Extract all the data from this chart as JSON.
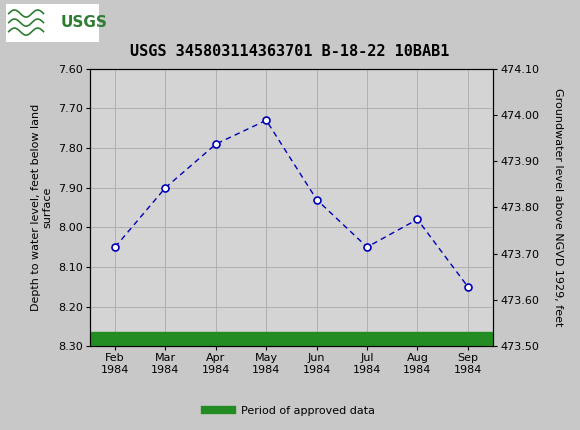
{
  "title": "USGS 345803114363701 B-18-22 10BAB1",
  "x_labels": [
    "Feb\n1984",
    "Mar\n1984",
    "Apr\n1984",
    "May\n1984",
    "Jun\n1984",
    "Jul\n1984",
    "Aug\n1984",
    "Sep\n1984"
  ],
  "x_positions": [
    0,
    1,
    2,
    3,
    4,
    5,
    6,
    7
  ],
  "y_depth": [
    8.05,
    7.9,
    7.79,
    7.73,
    7.93,
    8.05,
    7.98,
    8.15
  ],
  "ylabel_left": "Depth to water level, feet below land\nsurface",
  "ylabel_right": "Groundwater level above NGVD 1929, feet",
  "ylim_left": [
    8.3,
    7.6
  ],
  "ylim_right": [
    473.5,
    474.1
  ],
  "yticks_left": [
    7.6,
    7.7,
    7.8,
    7.9,
    8.0,
    8.1,
    8.2,
    8.3
  ],
  "yticks_right": [
    473.5,
    473.6,
    473.7,
    473.8,
    473.9,
    474.0,
    474.1
  ],
  "line_color": "#0000BB",
  "marker_color": "#0000BB",
  "green_bar_color": "#228B22",
  "plot_bg_color": "#D4D4D4",
  "fig_bg_color": "#C8C8C8",
  "header_bg_color": "#2E7D32",
  "legend_label": "Period of approved data",
  "title_fontsize": 11,
  "axis_fontsize": 8,
  "ylabel_fontsize": 8
}
